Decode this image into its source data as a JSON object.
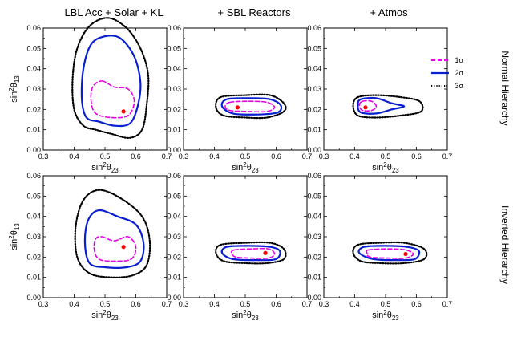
{
  "chart_data": {
    "type": "contour",
    "column_titles": [
      "LBL Acc + Solar + KL",
      "+ SBL Reactors",
      "+ Atmos"
    ],
    "row_labels": [
      "Normal Hierarchy",
      "Inverted Hierarchy"
    ],
    "xlabel": {
      "base": "sin",
      "sup": "2",
      "mid": "θ",
      "sub": "23"
    },
    "ylabel": {
      "base": "sin",
      "sup": "2",
      "mid": "θ",
      "sub": "13"
    },
    "xlim": [
      0.3,
      0.7
    ],
    "ylim": [
      0.0,
      0.06
    ],
    "xticks": [
      "0.3",
      "0.4",
      "0.5",
      "0.6",
      "0.7"
    ],
    "yticks": [
      "0.00",
      "0.01",
      "0.02",
      "0.03",
      "0.04",
      "0.05",
      "0.06"
    ],
    "legend": {
      "position": "top-right",
      "entries": [
        {
          "label": "1σ",
          "color": "#e600e6",
          "dash": "dashed"
        },
        {
          "label": "2σ",
          "color": "#0a1fd0",
          "dash": "solid"
        },
        {
          "label": "3σ",
          "color": "#000000",
          "dash": "dotted"
        }
      ]
    },
    "colors": {
      "one_sigma": "#e600e6",
      "two_sigma": "#0a1fd0",
      "three_sigma": "#000000",
      "best_fit": "#ff0000"
    },
    "panels": [
      {
        "id": "nh-lbl",
        "row": 0,
        "col": 0,
        "best_fit": [
          0.56,
          0.019
        ],
        "contours": [
          {
            "level": "3sigma",
            "points": [
              [
                0.51,
                0.065
              ],
              [
                0.57,
                0.06
              ],
              [
                0.615,
                0.05
              ],
              [
                0.64,
                0.037
              ],
              [
                0.635,
                0.022
              ],
              [
                0.62,
                0.01
              ],
              [
                0.58,
                0.006
              ],
              [
                0.52,
                0.008
              ],
              [
                0.47,
                0.01
              ],
              [
                0.43,
                0.012
              ],
              [
                0.4,
                0.02
              ],
              [
                0.395,
                0.035
              ],
              [
                0.41,
                0.05
              ],
              [
                0.45,
                0.061
              ]
            ]
          },
          {
            "level": "2sigma",
            "points": [
              [
                0.5,
                0.056
              ],
              [
                0.55,
                0.055
              ],
              [
                0.595,
                0.046
              ],
              [
                0.615,
                0.033
              ],
              [
                0.605,
                0.021
              ],
              [
                0.58,
                0.013
              ],
              [
                0.53,
                0.012
              ],
              [
                0.48,
                0.014
              ],
              [
                0.44,
                0.016
              ],
              [
                0.425,
                0.025
              ],
              [
                0.43,
                0.04
              ],
              [
                0.455,
                0.052
              ]
            ]
          },
          {
            "level": "1sigma",
            "points": [
              [
                0.49,
                0.034
              ],
              [
                0.53,
                0.031
              ],
              [
                0.575,
                0.03
              ],
              [
                0.595,
                0.024
              ],
              [
                0.575,
                0.017
              ],
              [
                0.52,
                0.016
              ],
              [
                0.47,
                0.018
              ],
              [
                0.455,
                0.024
              ],
              [
                0.46,
                0.031
              ]
            ]
          }
        ]
      },
      {
        "id": "nh-sbl",
        "row": 0,
        "col": 1,
        "best_fit": [
          0.475,
          0.021
        ],
        "contours": [
          {
            "level": "3sigma",
            "points": [
              [
                0.42,
                0.026
              ],
              [
                0.5,
                0.027
              ],
              [
                0.58,
                0.027
              ],
              [
                0.625,
                0.023
              ],
              [
                0.625,
                0.019
              ],
              [
                0.57,
                0.016
              ],
              [
                0.5,
                0.016
              ],
              [
                0.43,
                0.017
              ],
              [
                0.405,
                0.021
              ]
            ]
          },
          {
            "level": "2sigma",
            "points": [
              [
                0.44,
                0.025
              ],
              [
                0.51,
                0.0255
              ],
              [
                0.58,
                0.025
              ],
              [
                0.615,
                0.022
              ],
              [
                0.605,
                0.0185
              ],
              [
                0.54,
                0.0175
              ],
              [
                0.46,
                0.018
              ],
              [
                0.425,
                0.0215
              ]
            ]
          },
          {
            "level": "1sigma",
            "points": [
              [
                0.45,
                0.0235
              ],
              [
                0.51,
                0.024
              ],
              [
                0.57,
                0.0235
              ],
              [
                0.595,
                0.021
              ],
              [
                0.57,
                0.019
              ],
              [
                0.51,
                0.019
              ],
              [
                0.45,
                0.0195
              ],
              [
                0.435,
                0.0215
              ]
            ]
          }
        ]
      },
      {
        "id": "nh-atm",
        "row": 0,
        "col": 2,
        "best_fit": [
          0.435,
          0.021
        ],
        "contours": [
          {
            "level": "3sigma",
            "points": [
              [
                0.41,
                0.026
              ],
              [
                0.47,
                0.027
              ],
              [
                0.55,
                0.026
              ],
              [
                0.61,
                0.024
              ],
              [
                0.615,
                0.019
              ],
              [
                0.55,
                0.017
              ],
              [
                0.47,
                0.016
              ],
              [
                0.41,
                0.017
              ],
              [
                0.395,
                0.022
              ]
            ]
          },
          {
            "level": "2sigma",
            "points": [
              [
                0.42,
                0.025
              ],
              [
                0.47,
                0.0255
              ],
              [
                0.52,
                0.023
              ],
              [
                0.56,
                0.0215
              ],
              [
                0.52,
                0.02
              ],
              [
                0.47,
                0.018
              ],
              [
                0.42,
                0.0185
              ],
              [
                0.41,
                0.022
              ]
            ]
          },
          {
            "level": "1sigma",
            "points": [
              [
                0.425,
                0.024
              ],
              [
                0.455,
                0.024
              ],
              [
                0.47,
                0.0215
              ],
              [
                0.455,
                0.0195
              ],
              [
                0.425,
                0.0195
              ],
              [
                0.415,
                0.022
              ]
            ]
          }
        ]
      },
      {
        "id": "ih-lbl",
        "row": 1,
        "col": 0,
        "best_fit": [
          0.56,
          0.025
        ],
        "contours": [
          {
            "level": "3sigma",
            "points": [
              [
                0.48,
                0.053
              ],
              [
                0.55,
                0.049
              ],
              [
                0.62,
                0.04
              ],
              [
                0.645,
                0.028
              ],
              [
                0.635,
                0.016
              ],
              [
                0.59,
                0.011
              ],
              [
                0.52,
                0.01
              ],
              [
                0.45,
                0.012
              ],
              [
                0.41,
                0.02
              ],
              [
                0.405,
                0.035
              ],
              [
                0.43,
                0.048
              ]
            ]
          },
          {
            "level": "2sigma",
            "points": [
              [
                0.48,
                0.043
              ],
              [
                0.54,
                0.04
              ],
              [
                0.6,
                0.036
              ],
              [
                0.625,
                0.027
              ],
              [
                0.615,
                0.018
              ],
              [
                0.57,
                0.015
              ],
              [
                0.5,
                0.015
              ],
              [
                0.45,
                0.017
              ],
              [
                0.435,
                0.027
              ],
              [
                0.445,
                0.038
              ]
            ]
          },
          {
            "level": "1sigma",
            "points": [
              [
                0.49,
                0.03
              ],
              [
                0.53,
                0.028
              ],
              [
                0.575,
                0.03
              ],
              [
                0.6,
                0.025
              ],
              [
                0.585,
                0.019
              ],
              [
                0.53,
                0.018
              ],
              [
                0.48,
                0.019
              ],
              [
                0.465,
                0.024
              ],
              [
                0.47,
                0.029
              ]
            ]
          }
        ]
      },
      {
        "id": "ih-sbl",
        "row": 1,
        "col": 1,
        "best_fit": [
          0.565,
          0.022
        ],
        "contours": [
          {
            "level": "3sigma",
            "points": [
              [
                0.42,
                0.026
              ],
              [
                0.5,
                0.027
              ],
              [
                0.58,
                0.027
              ],
              [
                0.625,
                0.024
              ],
              [
                0.625,
                0.019
              ],
              [
                0.57,
                0.017
              ],
              [
                0.5,
                0.017
              ],
              [
                0.43,
                0.018
              ],
              [
                0.405,
                0.022
              ]
            ]
          },
          {
            "level": "2sigma",
            "points": [
              [
                0.44,
                0.025
              ],
              [
                0.51,
                0.0255
              ],
              [
                0.58,
                0.025
              ],
              [
                0.612,
                0.023
              ],
              [
                0.6,
                0.019
              ],
              [
                0.54,
                0.0185
              ],
              [
                0.46,
                0.019
              ],
              [
                0.425,
                0.022
              ]
            ]
          },
          {
            "level": "1sigma",
            "points": [
              [
                0.465,
                0.0235
              ],
              [
                0.52,
                0.024
              ],
              [
                0.575,
                0.024
              ],
              [
                0.595,
                0.0215
              ],
              [
                0.575,
                0.0195
              ],
              [
                0.52,
                0.0195
              ],
              [
                0.47,
                0.02
              ],
              [
                0.455,
                0.022
              ]
            ]
          }
        ]
      },
      {
        "id": "ih-atm",
        "row": 1,
        "col": 2,
        "best_fit": [
          0.565,
          0.0215
        ],
        "contours": [
          {
            "level": "3sigma",
            "points": [
              [
                0.41,
                0.026
              ],
              [
                0.48,
                0.027
              ],
              [
                0.56,
                0.027
              ],
              [
                0.625,
                0.024
              ],
              [
                0.625,
                0.019
              ],
              [
                0.56,
                0.017
              ],
              [
                0.48,
                0.017
              ],
              [
                0.42,
                0.018
              ],
              [
                0.395,
                0.022
              ]
            ]
          },
          {
            "level": "2sigma",
            "points": [
              [
                0.43,
                0.025
              ],
              [
                0.5,
                0.0255
              ],
              [
                0.57,
                0.025
              ],
              [
                0.608,
                0.023
              ],
              [
                0.595,
                0.019
              ],
              [
                0.54,
                0.0185
              ],
              [
                0.46,
                0.019
              ],
              [
                0.415,
                0.022
              ]
            ]
          },
          {
            "level": "1sigma",
            "points": [
              [
                0.445,
                0.0235
              ],
              [
                0.51,
                0.024
              ],
              [
                0.565,
                0.0235
              ],
              [
                0.59,
                0.0215
              ],
              [
                0.565,
                0.0195
              ],
              [
                0.51,
                0.0195
              ],
              [
                0.45,
                0.02
              ],
              [
                0.44,
                0.022
              ]
            ]
          }
        ]
      }
    ]
  }
}
